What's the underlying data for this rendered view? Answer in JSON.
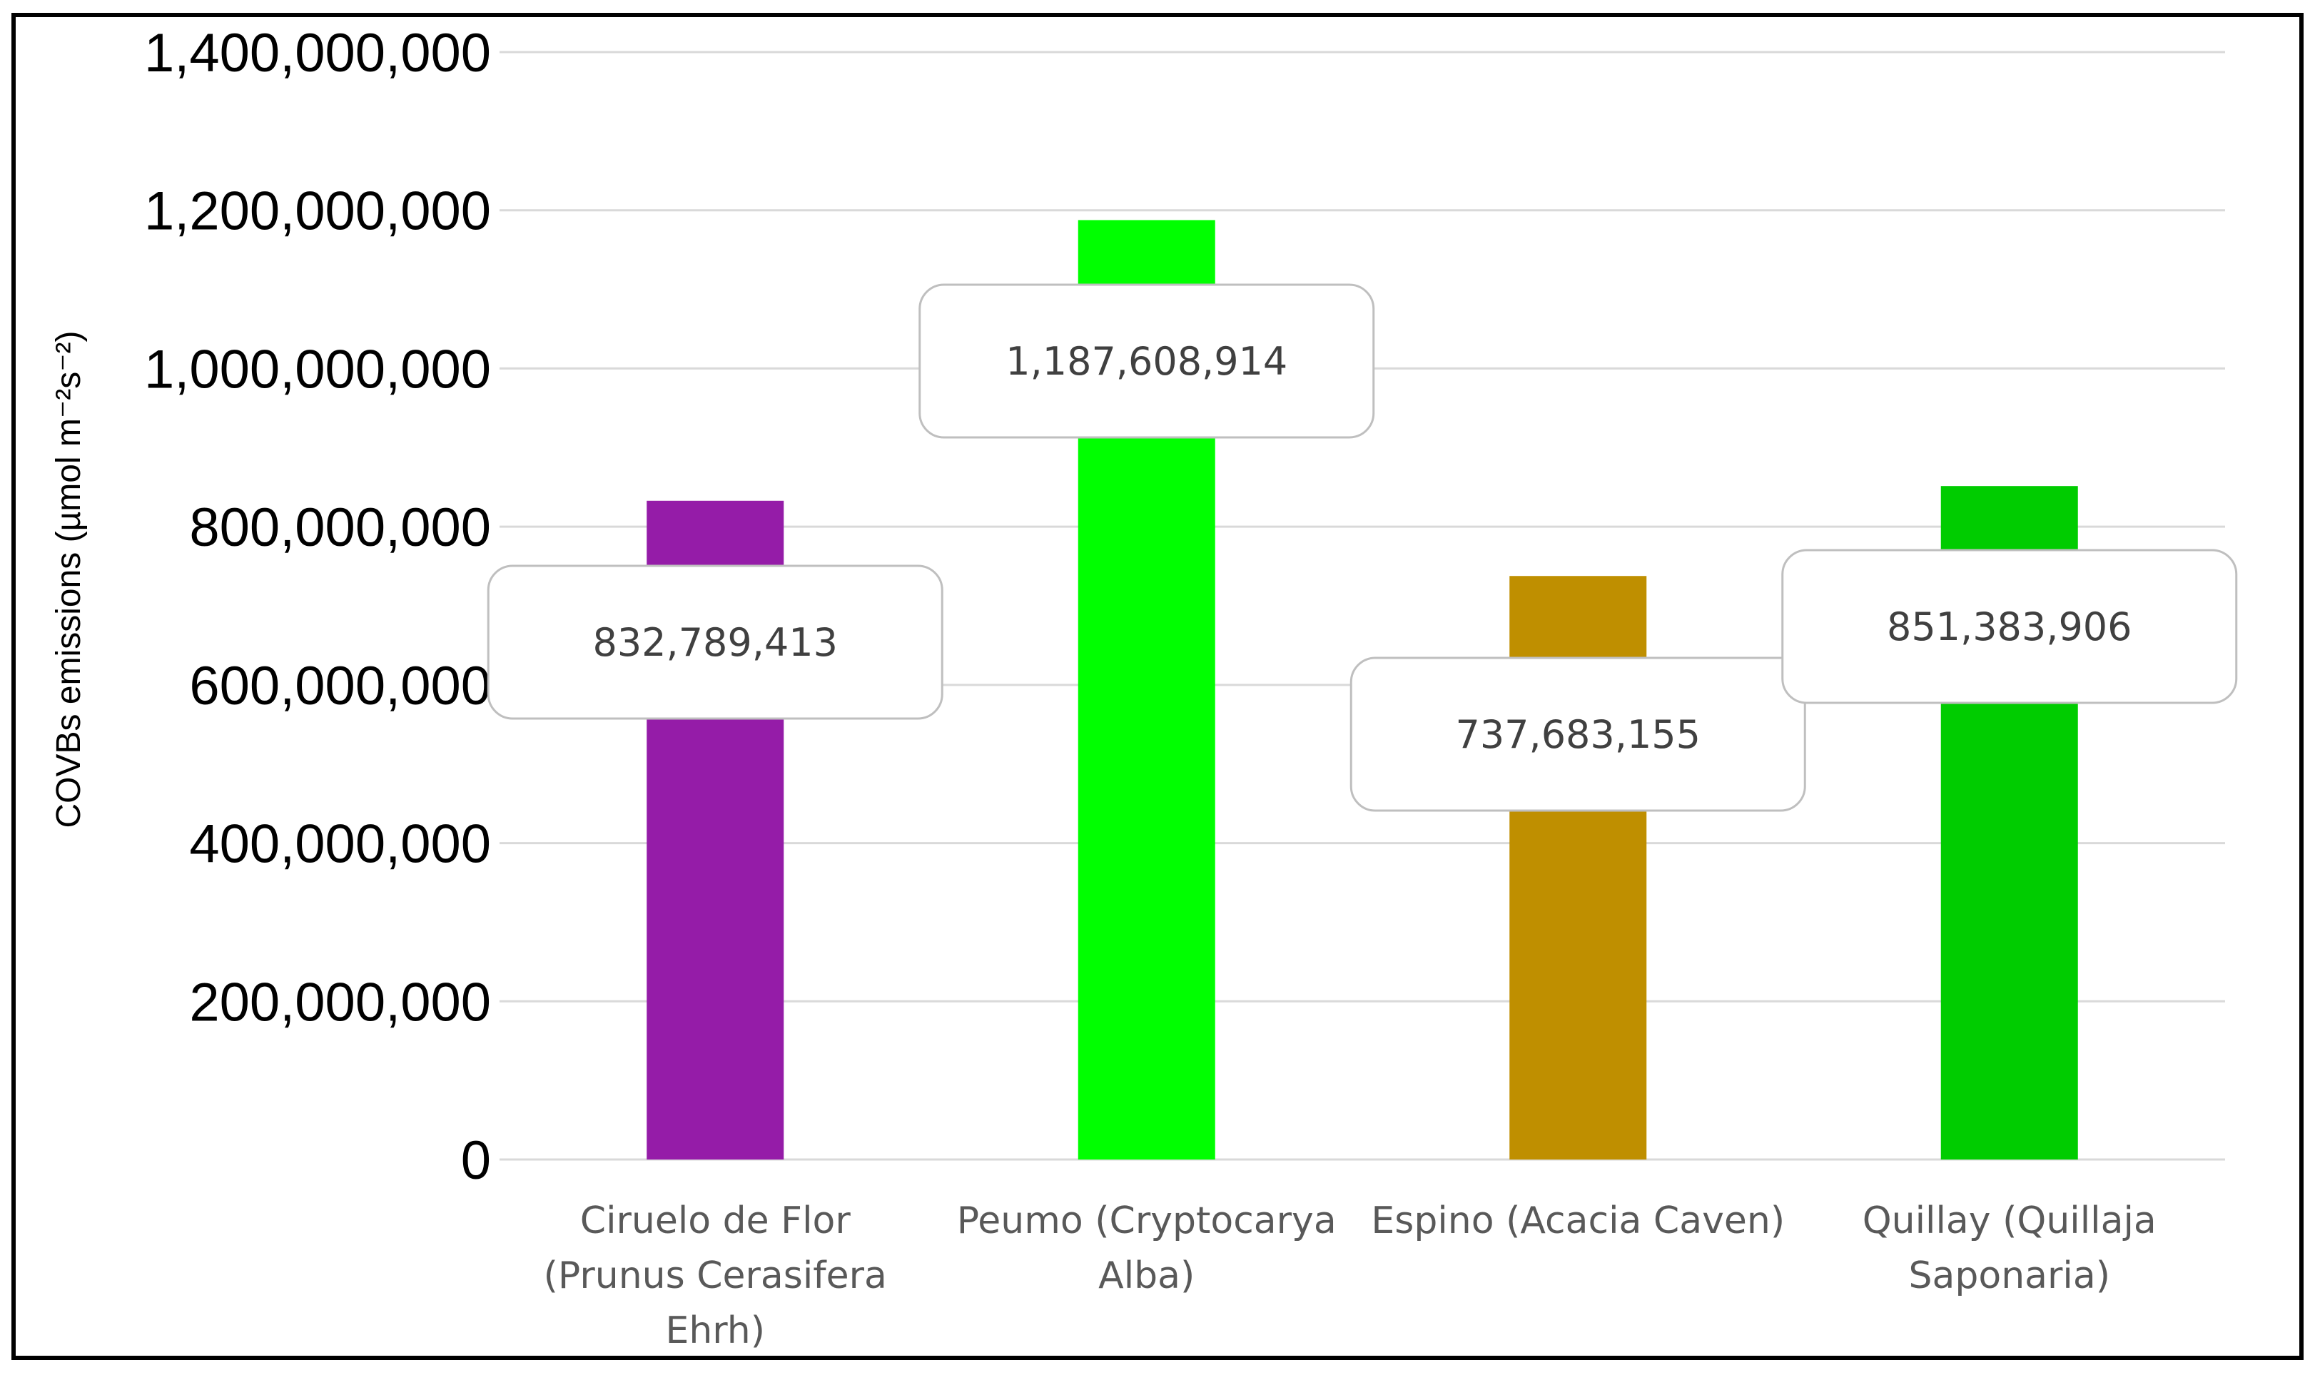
{
  "chart_data": {
    "type": "bar",
    "title": "",
    "xlabel": "",
    "ylabel": "COVBs emissions (µmol m⁻²s⁻²)",
    "ylim": [
      0,
      1400000000
    ],
    "ytick_step": 200000000,
    "yticks": [
      "0",
      "200,000,000",
      "400,000,000",
      "600,000,000",
      "800,000,000",
      "1,000,000,000",
      "1,200,000,000",
      "1,400,000,000"
    ],
    "grid": true,
    "legend": "none",
    "categories": [
      [
        "Ciruelo de Flor",
        "(Prunus Cerasifera",
        "Ehrh)"
      ],
      [
        "Peumo (Cryptocarya",
        "Alba)"
      ],
      [
        "Espino (Acacia Caven)"
      ],
      [
        "Quillay (Quillaja",
        "Saponaria)"
      ]
    ],
    "values": [
      832789413,
      1187608914,
      737683155,
      851383906
    ],
    "data_labels": [
      "832,789,413",
      "1,187,608,914",
      "737,683,155",
      "851,383,906"
    ],
    "colors": [
      "#951CA8",
      "#00FF00",
      "#BF8F00",
      "#00CC00"
    ]
  }
}
